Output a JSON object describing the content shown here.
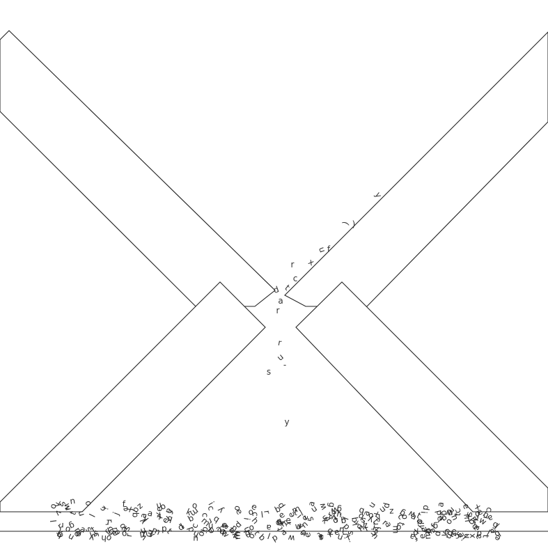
{
  "scene": {
    "background_color": "#ffffff",
    "line_color": "#222222",
    "text_color": "#333333"
  },
  "falling_letters": [
    "y",
    ")",
    ")",
    "u",
    "r",
    "x",
    "f",
    "c",
    "t",
    "d",
    "a",
    "r",
    "r",
    "u",
    "-",
    "s",
    "y"
  ],
  "pile_text": "oacikyuoxneo0iatsradmuiteeqhsoeanthlaeydgcemurcbwelcoryoiyuptemoaxletsnhwadiekfgrbqumsoauebnolcpmiheehtayjkzerdnwosqtvaefbgcuxiamsldreghaywoenvtokubacfoirmxyelsdntpaqgkecbjowuhiyzlfaemretdrsnkovacuxgbhiqwlpemsjydanfortcekuzgiblamvowheqsrnxdypfaoteclkgsiubmarwhenzotdyjcqxsvpfmlaekgiubrnowtedhysacqx"
}
